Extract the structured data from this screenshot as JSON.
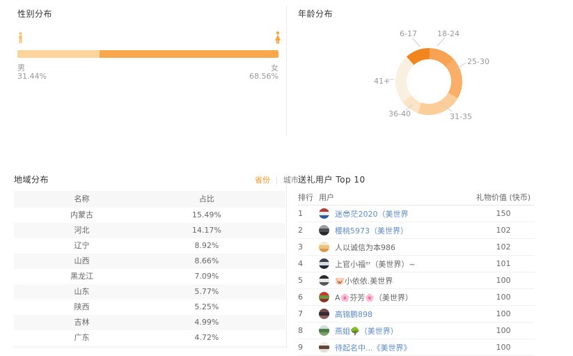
{
  "gender": {
    "title": "性别分布",
    "male_label": "男",
    "male_value": "31.44%",
    "male_pct": 31.44,
    "female_label": "女",
    "female_value": "68.56%",
    "female_pct": 68.56,
    "male_bar_color": "#fcd49c",
    "female_bar_color": "#f9a64d",
    "male_icon_color": "#fac176",
    "female_icon_color": "#f8a43e"
  },
  "age": {
    "title": "年龄分布"
  },
  "region": {
    "title": "地域分布",
    "toggle": {
      "province": "省份",
      "separator": "|",
      "city": "城市"
    }
  },
  "gifts": {
    "title": "送礼用户 Top 10",
    "columns": [
      "排行",
      "用户",
      "礼物价值 (快币)"
    ],
    "rows": [
      {
        "rank": "1",
        "name": "迷😎茫2020（美世界",
        "link": true,
        "value": "150",
        "avatar": [
          "#b23a31",
          "#e9edf2",
          "#2d5a9b"
        ]
      },
      {
        "rank": "2",
        "name": "樱桃5973（美世界）",
        "link": true,
        "value": "102",
        "avatar": [
          "#9aa0a6",
          "#4a4d52",
          "#26282c"
        ]
      },
      {
        "rank": "3",
        "name": "人以诚信为本986",
        "link": false,
        "value": "102",
        "avatar": [
          "#f6e7c8",
          "#ecc27c",
          "#d89a4a"
        ]
      },
      {
        "rank": "4",
        "name": "上官小福ᵉʳ（美世界）~",
        "link": false,
        "value": "101",
        "avatar": [
          "#3a3f4d",
          "#d8dbe0",
          "#23283a"
        ]
      },
      {
        "rank": "5",
        "name": "🐷小依依.美世界",
        "link": false,
        "value": "100",
        "avatar": [
          "#2b2b2b",
          "#e9e9e9",
          "#555555"
        ]
      },
      {
        "rank": "6",
        "name": "A🌸芬芳🌸（美世界）",
        "link": false,
        "value": "100",
        "avatar": [
          "#c23b2a",
          "#6f9440",
          "#8f2f23"
        ]
      },
      {
        "rank": "7",
        "name": "高锦鹏898",
        "link": true,
        "value": "100",
        "avatar": [
          "#6e4a48",
          "#3a2833",
          "#8a6058"
        ]
      },
      {
        "rank": "8",
        "name": "燕姐🌳（美世界）",
        "link": true,
        "value": "100",
        "avatar": [
          "#cfe0d8",
          "#4e7d4a",
          "#7da06a"
        ]
      },
      {
        "rank": "9",
        "name": "待起名中...《美世界》",
        "link": true,
        "value": "100",
        "avatar": [
          "#f2ece6",
          "#5f4636",
          "#e8ddd4"
        ]
      }
    ]
  },
  "chart_data": [
    {
      "type": "bar",
      "title": "性别分布",
      "categories": [
        "男",
        "女"
      ],
      "values": [
        31.44,
        68.56
      ],
      "unit": "%",
      "layout": "single horizontal stacked bar, male light orange left, female orange right",
      "colors": [
        "#fcd49c",
        "#f9a64d"
      ]
    },
    {
      "type": "pie",
      "title": "年龄分布",
      "donut": true,
      "categories": [
        "6-17",
        "18-24",
        "25-30",
        "31-35",
        "36-40",
        "41+"
      ],
      "values": [
        12,
        13,
        20,
        22,
        9,
        24
      ],
      "unit": "%",
      "note": "no numeric labels shown on chart; values estimated from arc angles",
      "colors": [
        "#f0861d",
        "#f8a254",
        "#f9af68",
        "#fbcd98",
        "#fce4c6",
        "#faf0e2"
      ],
      "legend_position": "outside labels with leader lines"
    },
    {
      "type": "table",
      "title": "地域分布",
      "columns": [
        "名称",
        "占比"
      ],
      "rows": [
        [
          "内蒙古",
          "15.49%"
        ],
        [
          "河北",
          "14.17%"
        ],
        [
          "辽宁",
          "8.92%"
        ],
        [
          "山西",
          "8.66%"
        ],
        [
          "黑龙江",
          "7.09%"
        ],
        [
          "山东",
          "5.77%"
        ],
        [
          "陕西",
          "5.25%"
        ],
        [
          "吉林",
          "4.99%"
        ],
        [
          "广东",
          "4.72%"
        ]
      ]
    },
    {
      "type": "table",
      "title": "送礼用户 Top 10",
      "columns": [
        "排行",
        "用户",
        "礼物价值 (快币)"
      ],
      "rows": [
        [
          "1",
          "迷😎茫2020（美世界",
          "150"
        ],
        [
          "2",
          "樱桃5973（美世界）",
          "102"
        ],
        [
          "3",
          "人以诚信为本986",
          "102"
        ],
        [
          "4",
          "上官小福ᵉʳ（美世界）~",
          "101"
        ],
        [
          "5",
          "🐷小依依.美世界",
          "100"
        ],
        [
          "6",
          "A🌸芬芳🌸（美世界）",
          "100"
        ],
        [
          "7",
          "高锦鹏898",
          "100"
        ],
        [
          "8",
          "燕姐🌳（美世界）",
          "100"
        ],
        [
          "9",
          "待起名中...《美世界》",
          "100"
        ]
      ]
    }
  ]
}
